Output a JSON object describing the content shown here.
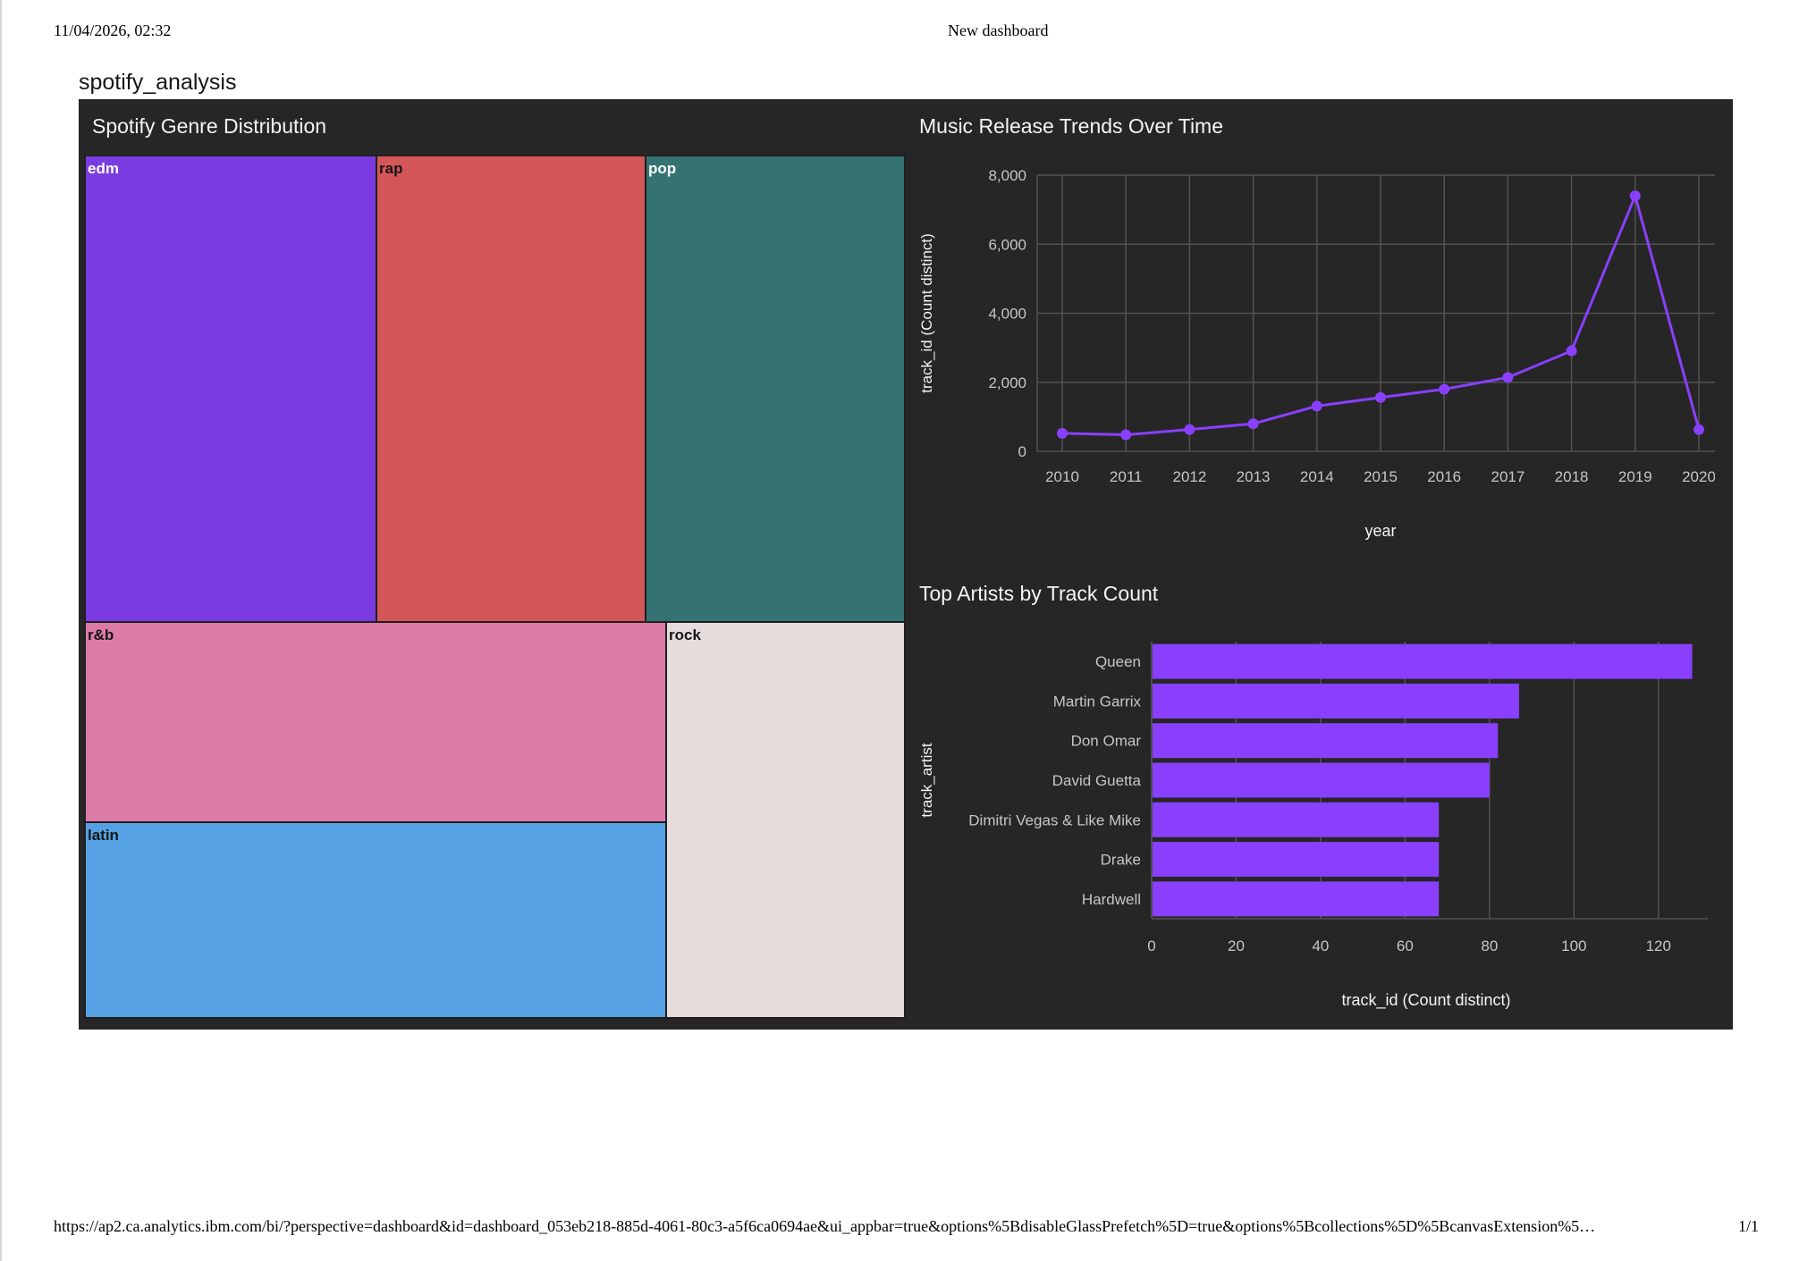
{
  "print_header": {
    "datetime": "11/04/2026, 02:32",
    "title": "New dashboard"
  },
  "print_footer": {
    "url": "https://ap2.ca.analytics.ibm.com/bi/?perspective=dashboard&id=dashboard_053eb218-885d-4061-80c3-a5f6ca0694ae&ui_appbar=true&options%5BdisableGlassPrefetch%5D=true&options%5Bcollections%5D%5BcanvasExtension%5…",
    "page": "1/1"
  },
  "dashboard": {
    "name": "spotify_analysis"
  },
  "colors": {
    "panel_bg": "#262626",
    "accent": "#8a3ffc",
    "grid": "#525252",
    "axis_text": "#c6c6c6"
  },
  "chart_data": [
    {
      "type": "treemap",
      "title": "Spotify Genre Distribution",
      "items": [
        {
          "label": "edm",
          "color": "#7a3ce0",
          "label_color": "#ffffff"
        },
        {
          "label": "rap",
          "color": "#d35658",
          "label_color": "#161616"
        },
        {
          "label": "pop",
          "color": "#357373",
          "label_color": "#ffffff"
        },
        {
          "label": "r&b",
          "color": "#dd7ba8",
          "label_color": "#161616"
        },
        {
          "label": "latin",
          "color": "#56a1e3",
          "label_color": "#161616"
        },
        {
          "label": "rock",
          "color": "#e7dcdc",
          "label_color": "#161616"
        }
      ]
    },
    {
      "type": "line",
      "title": "Music Release Trends Over Time",
      "xlabel": "year",
      "ylabel": "track_id (Count distinct)",
      "x": [
        "2010",
        "2011",
        "2012",
        "2013",
        "2014",
        "2015",
        "2016",
        "2017",
        "2018",
        "2019",
        "2020"
      ],
      "values": [
        520,
        480,
        630,
        800,
        1310,
        1560,
        1800,
        2140,
        2910,
        7400,
        630
      ],
      "yticks": [
        "0",
        "2,000",
        "4,000",
        "6,000",
        "8,000"
      ],
      "ylim": [
        0,
        8000
      ],
      "grid": true
    },
    {
      "type": "bar",
      "orientation": "horizontal",
      "title": "Top Artists by Track Count",
      "xlabel": "track_id (Count distinct)",
      "ylabel": "track_artist",
      "categories": [
        "Queen",
        "Martin Garrix",
        "Don Omar",
        "David Guetta",
        "Dimitri Vegas & Like Mike",
        "Drake",
        "Hardwell"
      ],
      "values": [
        128,
        87,
        82,
        80,
        68,
        68,
        68
      ],
      "xticks": [
        "0",
        "20",
        "40",
        "60",
        "80",
        "100",
        "120"
      ],
      "xlim": [
        0,
        130
      ],
      "grid": true
    }
  ]
}
